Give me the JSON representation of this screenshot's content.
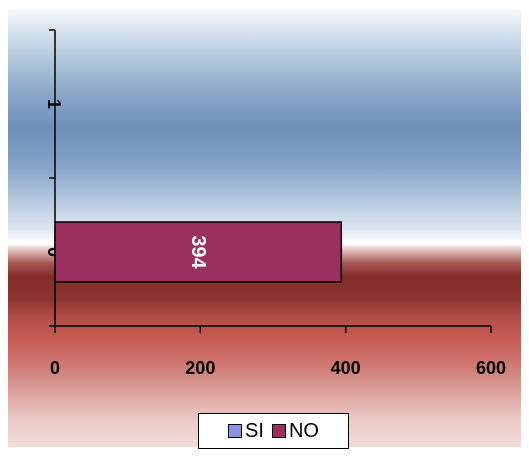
{
  "chart_data": {
    "type": "bar",
    "orientation": "horizontal",
    "categories": [
      "0",
      "1"
    ],
    "series": [
      {
        "name": "SI",
        "values": [
          0,
          0
        ],
        "color": "#8b93e8"
      },
      {
        "name": "NO",
        "values": [
          394,
          0
        ],
        "color": "#9b3060"
      }
    ],
    "data_labels": [
      "394"
    ],
    "x_ticks": [
      "0",
      "200",
      "400",
      "600"
    ],
    "xlim": [
      0,
      600
    ],
    "grid": false,
    "legend_position": "bottom",
    "title": "",
    "xlabel": "",
    "ylabel": ""
  }
}
